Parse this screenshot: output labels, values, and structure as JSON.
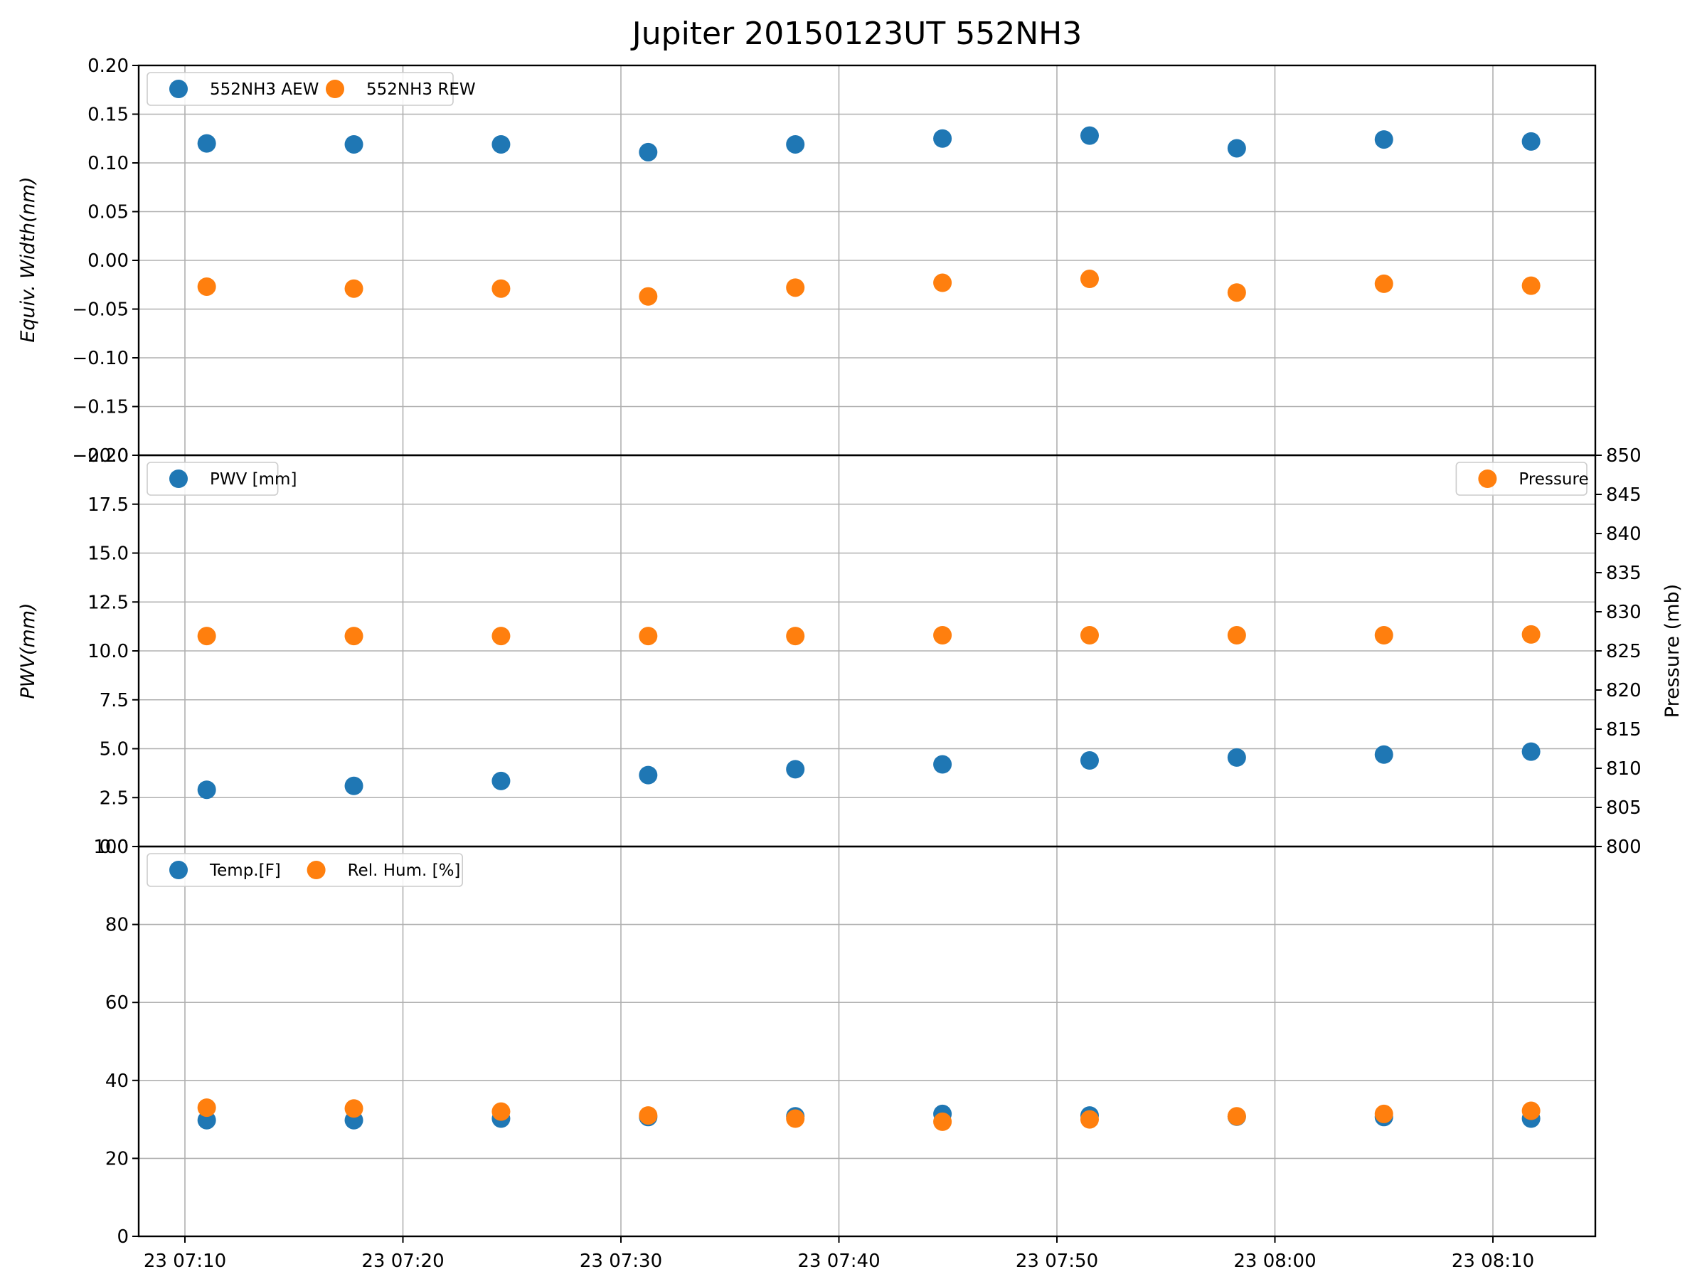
{
  "title": "Jupiter 20150123UT 552NH3",
  "colors": {
    "blue": "#1f77b4",
    "orange": "#ff7f0e"
  },
  "x_ticks": [
    "23 07:10",
    "23 07:20",
    "23 07:30",
    "23 07:40",
    "23 07:50",
    "23 08:00",
    "23 08:10"
  ],
  "chart_data": [
    {
      "type": "scatter",
      "panel": "top",
      "x": [
        "07:11",
        "07:17:45",
        "07:24:30",
        "07:31:15",
        "07:38",
        "07:44:45",
        "07:51:30",
        "07:58:15",
        "08:05",
        "08:11:45"
      ],
      "ylabel": "Equiv. Width(nm)",
      "ylim": [
        -0.2,
        0.2
      ],
      "yticks": [
        "−0.20",
        "−0.15",
        "−0.10",
        "−0.05",
        "0.00",
        "0.05",
        "0.10",
        "0.15",
        "0.20"
      ],
      "ytick_values": [
        -0.2,
        -0.15,
        -0.1,
        -0.05,
        0.0,
        0.05,
        0.1,
        0.15,
        0.2
      ],
      "grid": true,
      "legend": "top-left",
      "series": [
        {
          "name": "552NH3 AEW",
          "color": "blue",
          "values": [
            0.12,
            0.119,
            0.119,
            0.111,
            0.119,
            0.125,
            0.128,
            0.115,
            0.124,
            0.122
          ]
        },
        {
          "name": "552NH3 REW",
          "color": "orange",
          "values": [
            -0.027,
            -0.029,
            -0.029,
            -0.037,
            -0.028,
            -0.023,
            -0.019,
            -0.033,
            -0.024,
            -0.026
          ]
        }
      ]
    },
    {
      "type": "scatter",
      "panel": "middle",
      "x": [
        "07:11",
        "07:17:45",
        "07:24:30",
        "07:31:15",
        "07:38",
        "07:44:45",
        "07:51:30",
        "07:58:15",
        "08:05",
        "08:11:45"
      ],
      "ylabel": "PWV(mm)",
      "ylim": [
        0,
        20
      ],
      "yticks": [
        "0.0",
        "2.5",
        "5.0",
        "7.5",
        "10.0",
        "12.5",
        "15.0",
        "17.5",
        "20.0"
      ],
      "ytick_values": [
        0,
        2.5,
        5,
        7.5,
        10,
        12.5,
        15,
        17.5,
        20
      ],
      "ylabel_right": "Pressure (mb)",
      "ylim_right": [
        800,
        850
      ],
      "yticks_right": [
        "800",
        "805",
        "810",
        "815",
        "820",
        "825",
        "830",
        "835",
        "840",
        "845",
        "850"
      ],
      "ytick_values_right": [
        800,
        805,
        810,
        815,
        820,
        825,
        830,
        835,
        840,
        845,
        850
      ],
      "grid": true,
      "series": [
        {
          "name": "PWV [mm]",
          "color": "blue",
          "axis": "left",
          "legend": "top-left",
          "values": [
            2.9,
            3.1,
            3.35,
            3.65,
            3.95,
            4.2,
            4.4,
            4.55,
            4.7,
            4.85
          ]
        },
        {
          "name": "Pressure",
          "color": "orange",
          "axis": "right",
          "legend": "top-right",
          "values": [
            826.9,
            826.9,
            826.9,
            826.9,
            826.9,
            827.0,
            827.0,
            827.0,
            827.0,
            827.1
          ]
        }
      ]
    },
    {
      "type": "scatter",
      "panel": "bottom",
      "x": [
        "07:11",
        "07:17:45",
        "07:24:30",
        "07:31:15",
        "07:38",
        "07:44:45",
        "07:51:30",
        "07:58:15",
        "08:05",
        "08:11:45"
      ],
      "ylabel": "",
      "ylim": [
        0,
        100
      ],
      "yticks": [
        "0",
        "20",
        "40",
        "60",
        "80",
        "100"
      ],
      "ytick_values": [
        0,
        20,
        40,
        60,
        80,
        100
      ],
      "grid": true,
      "legend": "top-left",
      "series": [
        {
          "name": "Temp.[F]",
          "color": "blue",
          "values": [
            29.8,
            29.8,
            30.2,
            30.6,
            30.8,
            31.4,
            31.0,
            30.7,
            30.6,
            30.2
          ]
        },
        {
          "name": "Rel. Hum. [%]",
          "color": "orange",
          "values": [
            33.0,
            32.8,
            32.0,
            31.0,
            30.2,
            29.4,
            30.0,
            30.8,
            31.4,
            32.2
          ]
        }
      ]
    }
  ]
}
